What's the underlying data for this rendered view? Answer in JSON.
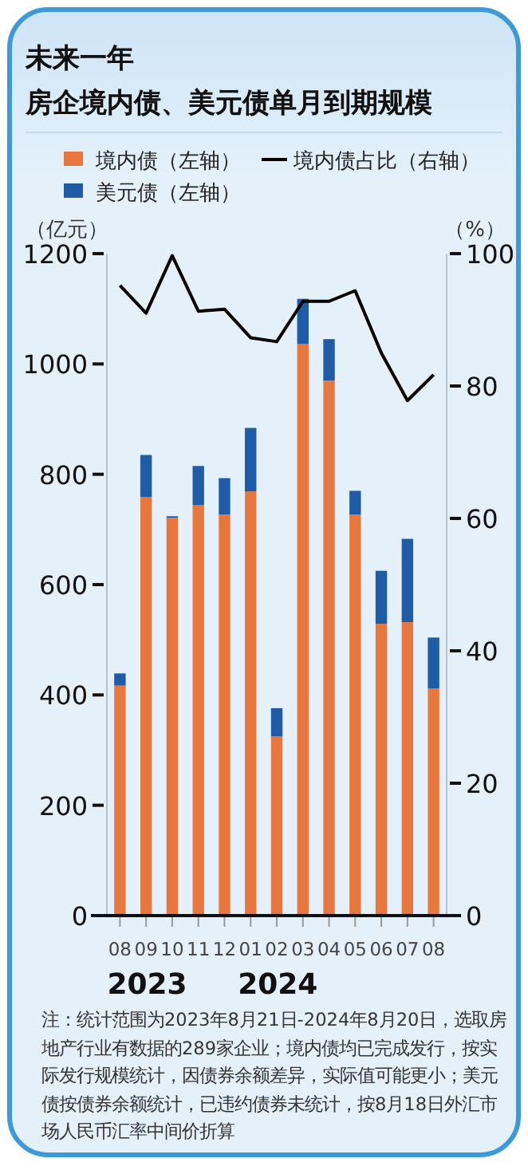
{
  "chart_data": {
    "type": "bar",
    "title": "未来一年",
    "subtitle": "房企境内债、美元债单月到期规模",
    "ylabel": "（亿元）",
    "y2label": "（%）",
    "categories": [
      "08",
      "09",
      "10",
      "11",
      "12",
      "01",
      "02",
      "03",
      "04",
      "05",
      "06",
      "07",
      "08"
    ],
    "stacked": true,
    "legend": "top",
    "series": [
      {
        "name": "境内债（左轴）",
        "color": "#e8773d",
        "values": [
          417,
          759,
          721,
          744,
          727,
          769,
          325,
          1036,
          970,
          727,
          529,
          532,
          412
        ]
      },
      {
        "name": "美元债（左轴）",
        "color": "#1f5ba6",
        "values": [
          22,
          76,
          3,
          71,
          66,
          115,
          51,
          82,
          75,
          43,
          96,
          151,
          92
        ]
      },
      {
        "name": "境内债占比（右轴）",
        "type": "line",
        "axis": "y2",
        "color": "#000000",
        "values": [
          95.2,
          91.0,
          99.7,
          91.3,
          91.6,
          87.3,
          86.7,
          92.8,
          92.8,
          94.4,
          85.0,
          77.8,
          81.7
        ]
      }
    ],
    "ylim": [
      0,
      1200
    ],
    "yticks": [
      0,
      200,
      400,
      600,
      800,
      1000,
      1200
    ],
    "y2lim": [
      0,
      100
    ],
    "y2ticks": [
      0,
      20,
      40,
      60,
      80,
      100
    ],
    "annotations": [
      "2023",
      "2024",
      "注：统计范围为2023年8月21日-2024年8月20日，选取房地产行业有数据的289家企业；境内债均已完成发行，按实际发行规模统计，因债券余额差异，实际值可能更小；美元债按债券余额统计，已违约债券未统计，按8月18日外汇市场人民币汇率中间价折算"
    ]
  }
}
